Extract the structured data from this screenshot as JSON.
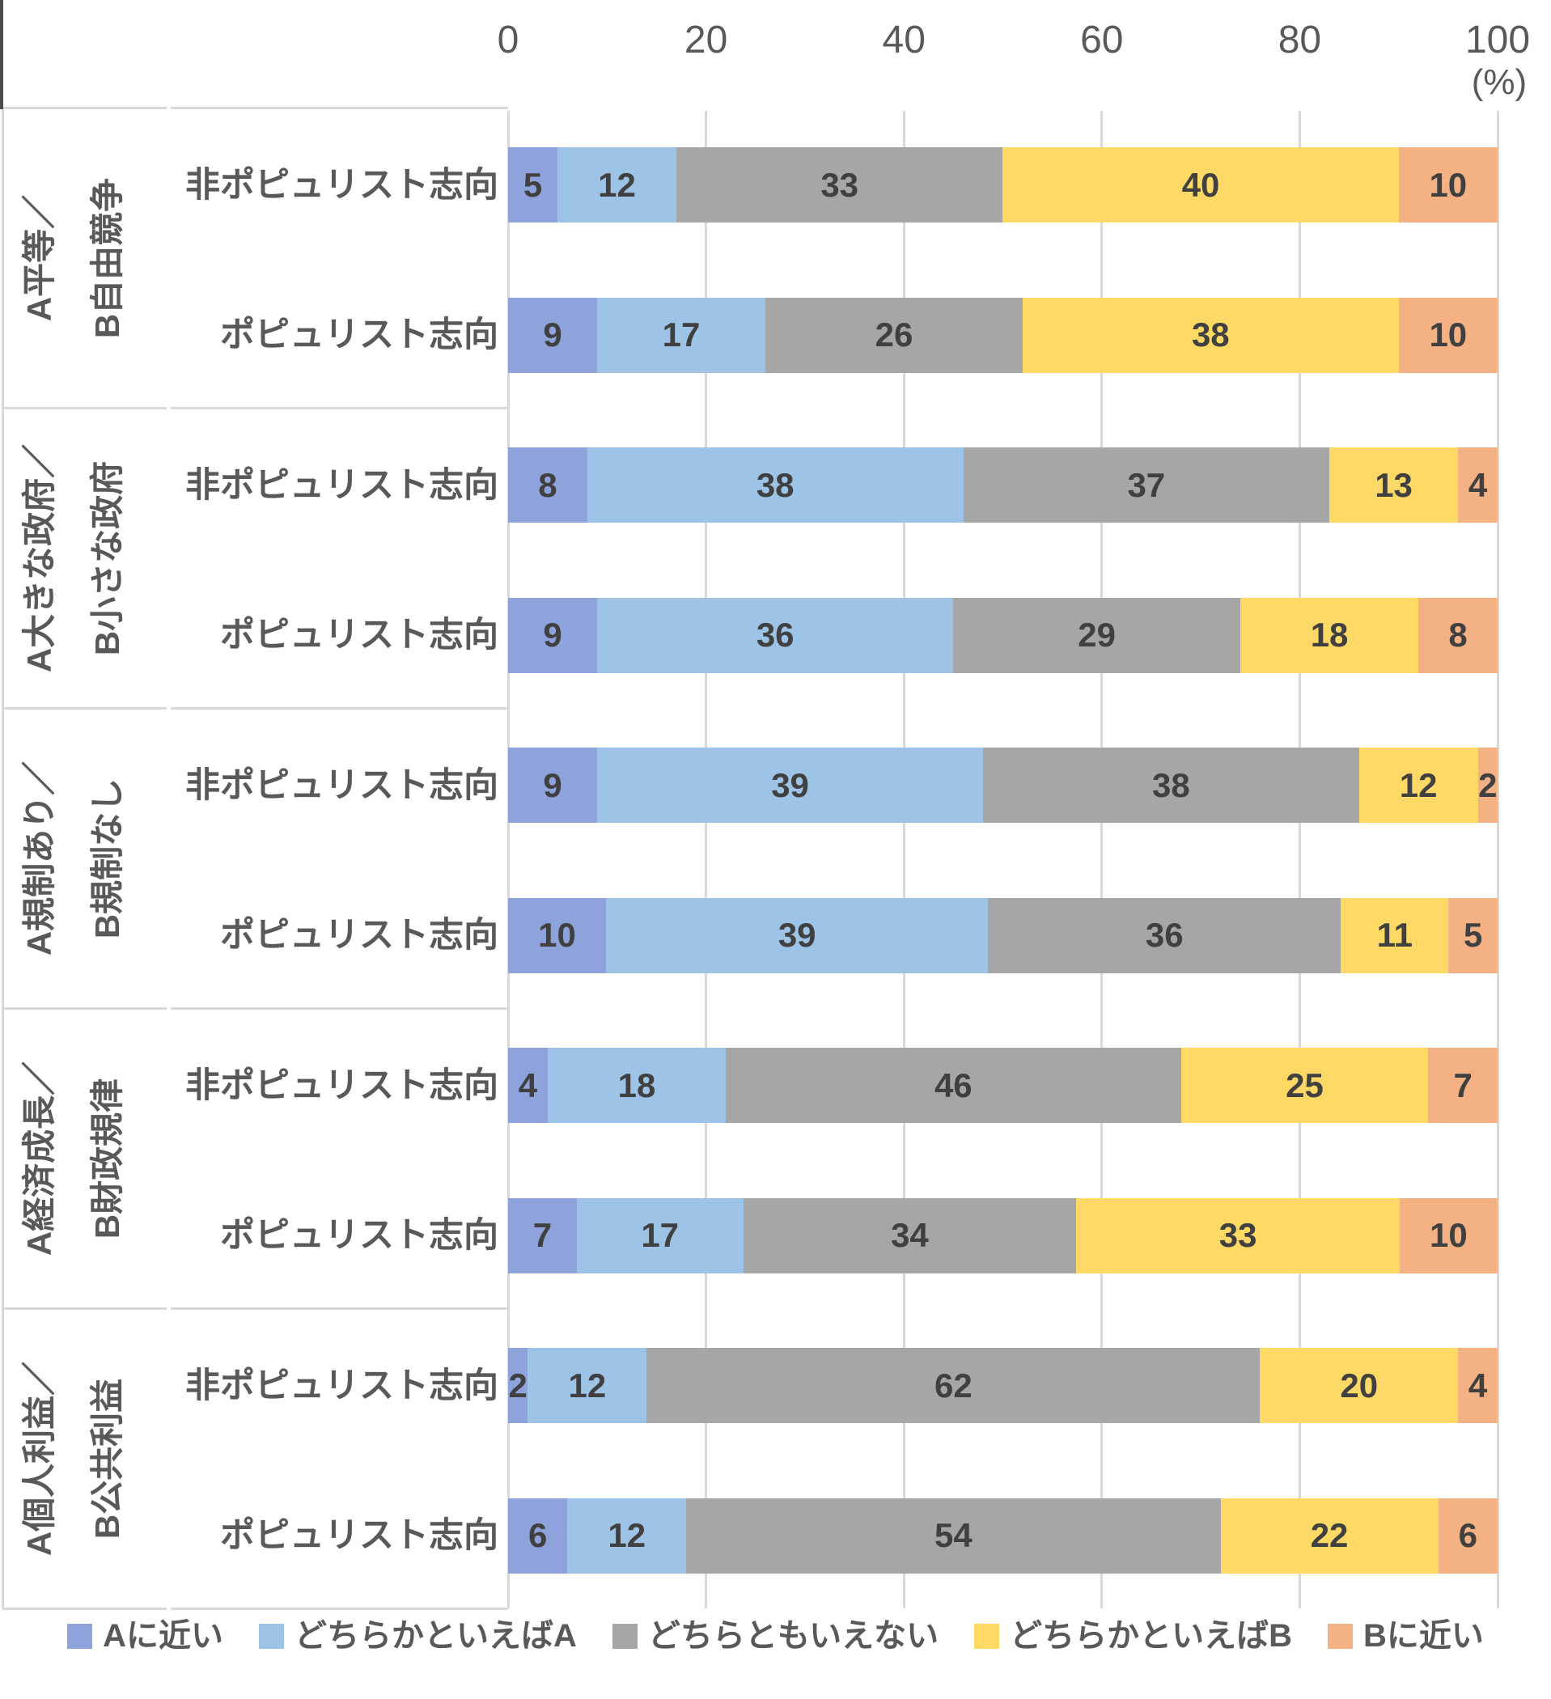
{
  "axis": {
    "tick_labels": [
      "0",
      "20",
      "40",
      "60",
      "80",
      "100"
    ],
    "unit_label": "(%)",
    "min": 0,
    "max": 100
  },
  "legend": {
    "items": [
      {
        "label": "Aに近い",
        "color": "#8EA3DC"
      },
      {
        "label": "どちらかといえばA",
        "color": "#9DC3E6"
      },
      {
        "label": "どちらともいえない",
        "color": "#A6A6A6"
      },
      {
        "label": "どちらかといえばB",
        "color": "#FFD966"
      },
      {
        "label": "Bに近い",
        "color": "#F4B183"
      }
    ]
  },
  "colors": {
    "axis_text": "#595959",
    "label_text": "#595959",
    "value_text": "#404040",
    "gridline": "#D9D9D9",
    "frame": "#D9D9D9"
  },
  "chart_data": {
    "type": "bar",
    "stacked": true,
    "percent_stacked": true,
    "orientation": "horizontal",
    "unit": "%",
    "xlim": [
      0,
      100
    ],
    "grid": true,
    "legend_position": "bottom",
    "series": [
      "Aに近い",
      "どちらかといえばA",
      "どちらともいえない",
      "どちらかといえばB",
      "Bに近い"
    ],
    "series_colors": [
      "#8EA3DC",
      "#9DC3E6",
      "#A6A6A6",
      "#FFD966",
      "#F4B183"
    ],
    "groups": [
      {
        "label": "A平等／B自由競争",
        "label_lines": [
          "A平等／",
          "B自由競争"
        ],
        "rows": [
          {
            "label": "非ポピュリスト志向",
            "values": [
              5,
              12,
              33,
              40,
              10
            ]
          },
          {
            "label": "ポピュリスト志向",
            "values": [
              9,
              17,
              26,
              38,
              10
            ]
          }
        ]
      },
      {
        "label": "A大きな政府／B小さな政府",
        "label_lines": [
          "A大きな政府／",
          "B小さな政府"
        ],
        "rows": [
          {
            "label": "非ポピュリスト志向",
            "values": [
              8,
              38,
              37,
              13,
              4
            ]
          },
          {
            "label": "ポピュリスト志向",
            "values": [
              9,
              36,
              29,
              18,
              8
            ]
          }
        ]
      },
      {
        "label": "A規制あり／B規制なし",
        "label_lines": [
          "A規制あり／",
          "B規制なし"
        ],
        "rows": [
          {
            "label": "非ポピュリスト志向",
            "values": [
              9,
              39,
              38,
              12,
              2
            ]
          },
          {
            "label": "ポピュリスト志向",
            "values": [
              10,
              39,
              36,
              11,
              5
            ]
          }
        ]
      },
      {
        "label": "A経済成長／B財政規律",
        "label_lines": [
          "A経済成長／",
          "B財政規律"
        ],
        "rows": [
          {
            "label": "非ポピュリスト志向",
            "values": [
              4,
              18,
              46,
              25,
              7
            ]
          },
          {
            "label": "ポピュリスト志向",
            "values": [
              7,
              17,
              34,
              33,
              10
            ]
          }
        ]
      },
      {
        "label": "A個人利益／B公共利益",
        "label_lines": [
          "A個人利益／",
          "B公共利益"
        ],
        "rows": [
          {
            "label": "非ポピュリスト志向",
            "values": [
              2,
              12,
              62,
              20,
              4
            ]
          },
          {
            "label": "ポピュリスト志向",
            "values": [
              6,
              12,
              54,
              22,
              6
            ]
          }
        ]
      }
    ]
  }
}
